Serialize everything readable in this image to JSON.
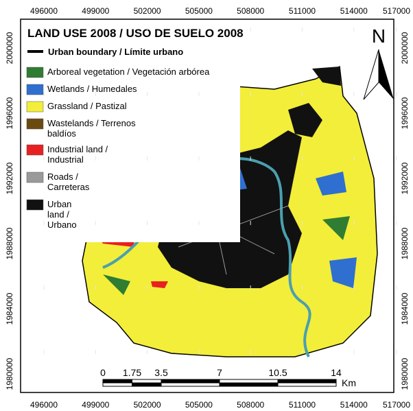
{
  "header": {
    "title": "LAND USE 2008 / USO DE SUELO 2008"
  },
  "north": "N",
  "legend": {
    "boundary": "Urban boundary / Límite urbano",
    "items": [
      {
        "label": "Arboreal vegetation / Vegetación arbórea",
        "color": "#2e7d32"
      },
      {
        "label": "Wetlands / Humedales",
        "color": "#2f6fd0"
      },
      {
        "label": "Grassland / Pastizal",
        "color": "#f2ee3a"
      },
      {
        "label": "Wastelands / Terrenos baldíos",
        "color": "#6b4a12"
      },
      {
        "label": "Industrial land / Industrial",
        "color": "#e82020"
      },
      {
        "label": "Roads / Carreteras",
        "color": "#9a9a9a"
      },
      {
        "label": "Urban land / Urbano",
        "color": "#111111"
      }
    ]
  },
  "grid": {
    "x_labels": [
      496000,
      499000,
      502000,
      505000,
      508000,
      511000,
      514000,
      517000
    ],
    "y_labels": [
      2000000,
      1996000,
      1992000,
      1988000,
      1984000,
      1980000
    ]
  },
  "scale_bar": {
    "labels": [
      0,
      1.75,
      3.5,
      7,
      10.5,
      14
    ],
    "unit": "Km"
  }
}
